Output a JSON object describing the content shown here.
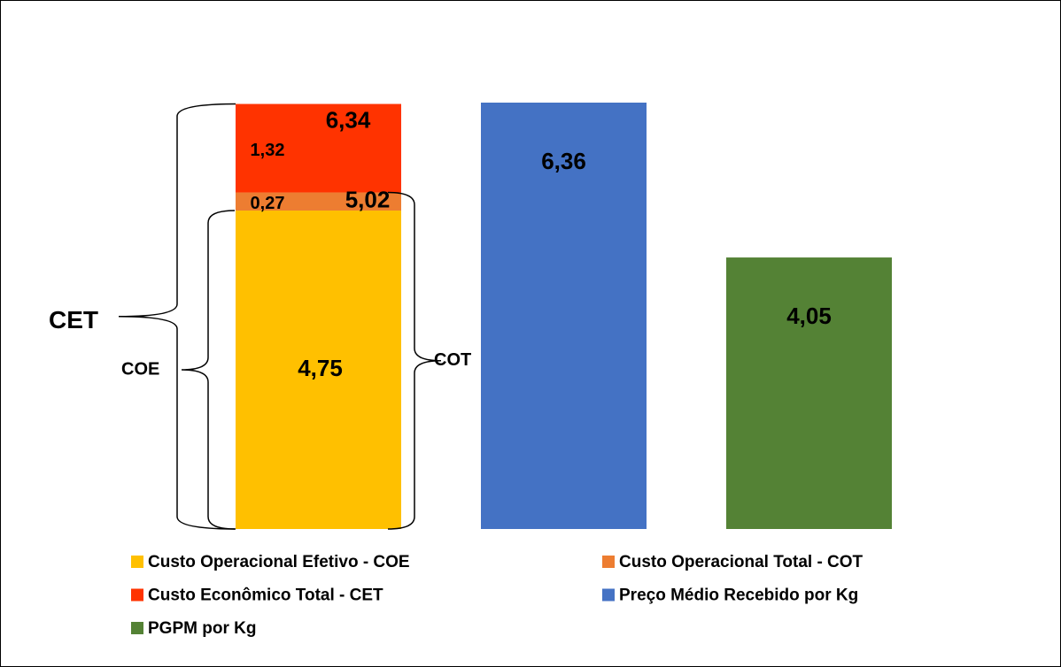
{
  "chart_data": {
    "type": "bar",
    "stacked": true,
    "categories": [
      null,
      null,
      null
    ],
    "series": [
      {
        "name": "Custo Operacional Efetivo - COE",
        "color": "#ffc000",
        "values": [
          4.75,
          null,
          null
        ],
        "value_labels": [
          "4,75",
          null,
          null
        ]
      },
      {
        "name": "Custo Operacional Total - COT",
        "color": "#ed7d31",
        "values": [
          0.27,
          null,
          null
        ],
        "value_labels": [
          "0,27",
          null,
          null
        ]
      },
      {
        "name": "Custo Econômico Total - CET",
        "color": "#ff3300",
        "values": [
          1.32,
          null,
          null
        ],
        "value_labels": [
          "1,32",
          null,
          null
        ]
      },
      {
        "name": "Preço Médio Recebido por Kg",
        "color": "#4472c4",
        "values": [
          null,
          6.36,
          null
        ],
        "value_labels": [
          null,
          "6,36",
          null
        ]
      },
      {
        "name": "PGPM por Kg",
        "color": "#548235",
        "values": [
          null,
          null,
          4.05
        ],
        "value_labels": [
          null,
          null,
          "4,05"
        ]
      }
    ],
    "totals": [
      {
        "value": 5.02,
        "label": "5,02"
      },
      {
        "value": 6.34,
        "label": "6,34"
      }
    ],
    "brace_labels": [
      "CET",
      "COE",
      "COT"
    ],
    "legend": "bottom"
  }
}
